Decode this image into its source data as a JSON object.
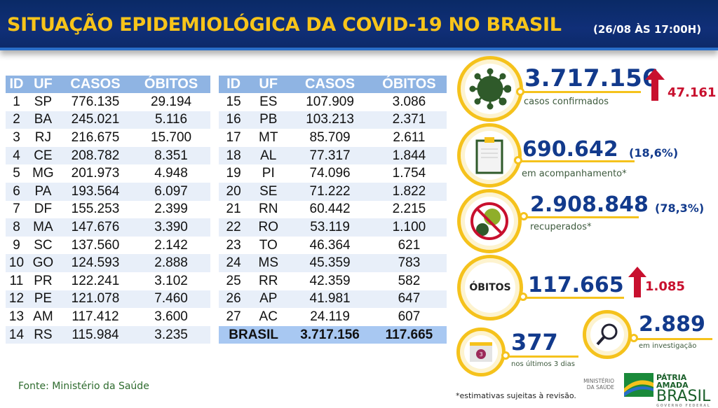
{
  "header": {
    "title": "SITUAÇÃO EPIDEMIOLÓGICA DA COVID-19 NO BRASIL",
    "date": "(26/08 ÀS 17:00H)"
  },
  "table": {
    "columns": [
      "ID",
      "UF",
      "CASOS",
      "ÓBITOS"
    ],
    "left": [
      [
        "1",
        "SP",
        "776.135",
        "29.194"
      ],
      [
        "2",
        "BA",
        "245.021",
        "5.116"
      ],
      [
        "3",
        "RJ",
        "216.675",
        "15.700"
      ],
      [
        "4",
        "CE",
        "208.782",
        "8.351"
      ],
      [
        "5",
        "MG",
        "201.973",
        "4.948"
      ],
      [
        "6",
        "PA",
        "193.564",
        "6.097"
      ],
      [
        "7",
        "DF",
        "155.253",
        "2.399"
      ],
      [
        "8",
        "MA",
        "147.676",
        "3.390"
      ],
      [
        "9",
        "SC",
        "137.560",
        "2.142"
      ],
      [
        "10",
        "GO",
        "124.593",
        "2.888"
      ],
      [
        "11",
        "PR",
        "122.241",
        "3.102"
      ],
      [
        "12",
        "PE",
        "121.078",
        "7.460"
      ],
      [
        "13",
        "AM",
        "117.412",
        "3.600"
      ],
      [
        "14",
        "RS",
        "115.984",
        "3.235"
      ]
    ],
    "right": [
      [
        "15",
        "ES",
        "107.909",
        "3.086"
      ],
      [
        "16",
        "PB",
        "103.213",
        "2.371"
      ],
      [
        "17",
        "MT",
        "85.709",
        "2.611"
      ],
      [
        "18",
        "AL",
        "77.317",
        "1.844"
      ],
      [
        "19",
        "PI",
        "74.096",
        "1.754"
      ],
      [
        "20",
        "SE",
        "71.222",
        "1.822"
      ],
      [
        "21",
        "RN",
        "60.442",
        "2.215"
      ],
      [
        "22",
        "RO",
        "53.119",
        "1.100"
      ],
      [
        "23",
        "TO",
        "46.364",
        "621"
      ],
      [
        "24",
        "MS",
        "45.359",
        "783"
      ],
      [
        "25",
        "RR",
        "42.359",
        "582"
      ],
      [
        "26",
        "AP",
        "41.981",
        "647"
      ],
      [
        "27",
        "AC",
        "24.119",
        "607"
      ]
    ],
    "total": {
      "label": "BRASIL",
      "casos": "3.717.156",
      "obitos": "117.665"
    }
  },
  "source": "Fonte: Ministério da Saúde",
  "stats": {
    "confirmed": {
      "value": "3.717.156",
      "label": "casos confirmados",
      "increase": "47.161",
      "icon": "virus-icon"
    },
    "monitoring": {
      "value": "690.642",
      "pct": "(18,6%)",
      "label": "em acompanhamento*",
      "icon": "clipboard-icon"
    },
    "recovered": {
      "value": "2.908.848",
      "pct": "(78,3%)",
      "label": "recuperados*",
      "icon": "virus-crossed-icon"
    },
    "deaths": {
      "badge": "ÓBITOS",
      "value": "117.665",
      "increase": "1.085"
    },
    "investigation": {
      "value": "2.889",
      "label": "em investigação",
      "icon": "magnifier-icon"
    },
    "last3": {
      "value": "377",
      "label": "nos últimos 3 dias",
      "icon": "calendar-icon",
      "calendar_day": "3"
    }
  },
  "footnote": "*estimativas sujeitas à revisão.",
  "logos": {
    "ministry": "MINISTÉRIO DA SAÚDE",
    "brand_line1": "PÁTRIA AMADA",
    "brand_line2": "BRASIL",
    "brand_line3": "GOVERNO FEDERAL"
  },
  "colors": {
    "navy": "#0a2a66",
    "yellow": "#f7c41a",
    "blue_text": "#123a8c",
    "red": "#c8102e",
    "table_header": "#8fb4e3"
  }
}
